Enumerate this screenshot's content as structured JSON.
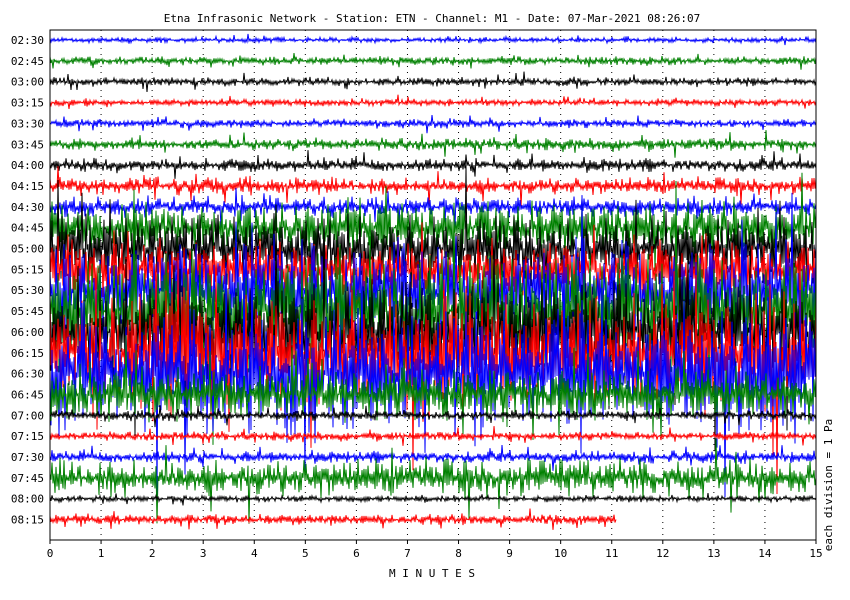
{
  "chart_data": {
    "type": "line",
    "title": "Etna Infrasonic Network - Station: ETN - Channel: M1 - Date: 07-Mar-2021 08:26:07",
    "xlabel": "M I N U T E S",
    "right_label": "each division = 1 Pa",
    "xlim": [
      0,
      15
    ],
    "x_ticks": [
      "0",
      "1",
      "2",
      "3",
      "4",
      "5",
      "6",
      "7",
      "8",
      "9",
      "10",
      "11",
      "12",
      "13",
      "14",
      "15"
    ],
    "row_labels": [
      "02:30",
      "02:45",
      "03:00",
      "03:15",
      "03:30",
      "03:45",
      "04:00",
      "04:15",
      "04:30",
      "04:45",
      "05:00",
      "05:15",
      "05:30",
      "05:45",
      "06:00",
      "06:15",
      "06:30",
      "06:45",
      "07:00",
      "07:15",
      "07:30",
      "07:45",
      "08:00",
      "08:15"
    ],
    "colors": [
      "#0000ff",
      "#008000",
      "#000000",
      "#ff0000"
    ],
    "amplitude": [
      3,
      5,
      5,
      4,
      5,
      7,
      8,
      10,
      12,
      30,
      40,
      38,
      55,
      65,
      60,
      72,
      75,
      30,
      6,
      5,
      7,
      22,
      4,
      6
    ],
    "last_row_end_minute": 11.1,
    "grid": "dotted vertical lines at each minute"
  }
}
